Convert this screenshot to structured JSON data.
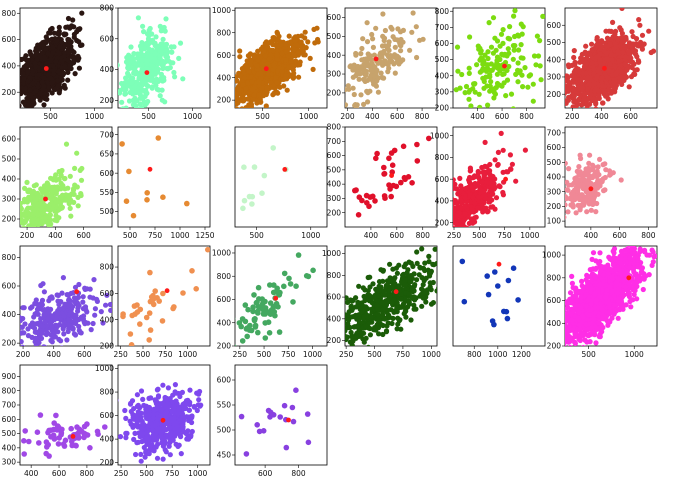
{
  "chart_data": [
    {
      "type": "scatter",
      "color": "#2a1612",
      "count": 900,
      "mean": [
        450,
        380
      ],
      "std": [
        150,
        120
      ],
      "rho": 0.55,
      "noise": [
        1,
        1
      ],
      "center": [
        450,
        380
      ],
      "xlim": [
        150,
        1200
      ],
      "ylim": [
        80,
        840
      ],
      "xticks": [
        500,
        1000
      ],
      "yticks": [
        200,
        400,
        600,
        800
      ]
    },
    {
      "type": "scatter",
      "color": "#7dffb8",
      "count": 350,
      "mean": [
        450,
        380
      ],
      "std": [
        150,
        120
      ],
      "rho": 0.5,
      "noise": [
        1,
        1
      ],
      "center": [
        480,
        380
      ],
      "xlim": [
        150,
        1200
      ],
      "ylim": [
        150,
        800
      ],
      "xticks": [
        500,
        1000
      ],
      "yticks": [
        200,
        400,
        600,
        800
      ]
    },
    {
      "type": "scatter",
      "color": "#c06b0a",
      "count": 900,
      "mean": [
        540,
        460
      ],
      "std": [
        180,
        140
      ],
      "rho": 0.6,
      "noise": [
        1,
        1
      ],
      "center": [
        540,
        480
      ],
      "xlim": [
        200,
        1200
      ],
      "ylim": [
        130,
        1020
      ],
      "xticks": [
        500,
        1000
      ],
      "yticks": [
        200,
        400,
        600,
        800,
        1000
      ]
    },
    {
      "type": "scatter",
      "color": "#c7a36c",
      "count": 180,
      "mean": [
        420,
        360
      ],
      "std": [
        160,
        100
      ],
      "rho": 0.6,
      "noise": [
        1,
        1
      ],
      "center": [
        430,
        380
      ],
      "xlim": [
        180,
        920
      ],
      "ylim": [
        120,
        650
      ],
      "xticks": [
        200,
        400,
        600,
        800
      ],
      "yticks": [
        200,
        300,
        400,
        500,
        600
      ]
    },
    {
      "type": "scatter",
      "color": "#7cdc10",
      "count": 160,
      "mean": [
        550,
        440
      ],
      "std": [
        180,
        140
      ],
      "rho": 0.1,
      "noise": [
        1,
        1
      ],
      "center": [
        620,
        460
      ],
      "xlim": [
        200,
        950
      ],
      "ylim": [
        200,
        820
      ],
      "xticks": [
        400,
        600,
        800
      ],
      "yticks": [
        200,
        300,
        400,
        500,
        600,
        700,
        800
      ]
    },
    {
      "type": "scatter",
      "color": "#d63a3a",
      "count": 1200,
      "mean": [
        400,
        340
      ],
      "std": [
        110,
        90
      ],
      "rho": 0.6,
      "noise": [
        1,
        1
      ],
      "center": [
        420,
        350
      ],
      "xlim": [
        150,
        780
      ],
      "ylim": [
        120,
        700
      ],
      "xticks": [
        200,
        400,
        600
      ],
      "yticks": [
        200,
        300,
        400,
        500,
        600
      ]
    },
    {
      "type": "scatter",
      "color": "#9bef6a",
      "count": 350,
      "mean": [
        300,
        260
      ],
      "std": [
        120,
        80
      ],
      "rho": 0.55,
      "noise": [
        1,
        1
      ],
      "center": [
        330,
        300
      ],
      "xlim": [
        150,
        800
      ],
      "ylim": [
        160,
        660
      ],
      "xticks": [
        200,
        400,
        600
      ],
      "yticks": [
        200,
        300,
        400,
        500,
        600
      ]
    },
    {
      "type": "scatter",
      "color": "#e68a32",
      "count": 12,
      "mean": [
        600,
        580
      ],
      "std": [
        250,
        80
      ],
      "rho": 0.4,
      "noise": [
        1,
        1
      ],
      "center": [
        700,
        610
      ],
      "xlim": [
        380,
        1300
      ],
      "ylim": [
        460,
        720
      ],
      "xticks": [
        500,
        750,
        1000,
        1250
      ],
      "yticks": [
        500,
        550,
        600,
        650,
        700
      ]
    },
    {
      "type": "scatter",
      "color": "#c3f5c8",
      "count": 12,
      "mean": [
        500,
        500
      ],
      "std": [
        150,
        150
      ],
      "rho": 0.5,
      "noise": [
        1,
        1
      ],
      "center": [
        760,
        600
      ],
      "xlim": [
        300,
        1150
      ],
      "ylim": [
        220,
        880
      ],
      "xticks": [
        500,
        1000
      ],
      "yticks": []
    },
    {
      "type": "scatter",
      "color": "#e0102a",
      "count": 40,
      "mean": [
        560,
        450
      ],
      "std": [
        170,
        150
      ],
      "rho": 0.7,
      "noise": [
        1,
        1
      ],
      "center": [
        560,
        460
      ],
      "xlim": [
        200,
        910
      ],
      "ylim": [
        100,
        800
      ],
      "xticks": [
        400,
        600,
        800
      ],
      "yticks": [
        200,
        300,
        400,
        500,
        600,
        700,
        800
      ]
    },
    {
      "type": "scatter",
      "color": "#e81e3c",
      "count": 400,
      "mean": [
        400,
        380
      ],
      "std": [
        160,
        180
      ],
      "rho": 0.7,
      "noise": [
        1,
        1
      ],
      "center": [
        760,
        600
      ],
      "xlim": [
        240,
        1150
      ],
      "ylim": [
        160,
        1080
      ],
      "xticks": [
        250,
        500,
        750,
        1000
      ],
      "yticks": [
        200,
        400,
        600,
        800,
        1000
      ]
    },
    {
      "type": "scatter",
      "color": "#f08896",
      "count": 180,
      "mean": [
        370,
        330
      ],
      "std": [
        80,
        90
      ],
      "rho": 0.4,
      "noise": [
        1,
        1
      ],
      "center": [
        400,
        320
      ],
      "xlim": [
        220,
        860
      ],
      "ylim": [
        60,
        740
      ],
      "xticks": [
        200,
        400,
        600,
        800
      ],
      "yticks": [
        100,
        200,
        300,
        400,
        500,
        600,
        700
      ]
    },
    {
      "type": "scatter",
      "color": "#7b4ee0",
      "count": 300,
      "mean": [
        420,
        360
      ],
      "std": [
        140,
        110
      ],
      "rho": 0.5,
      "noise": [
        1,
        1
      ],
      "center": [
        550,
        560
      ],
      "xlim": [
        180,
        780
      ],
      "ylim": [
        180,
        880
      ],
      "xticks": [
        200,
        400,
        600
      ],
      "yticks": [
        200,
        400,
        600,
        800
      ]
    },
    {
      "type": "scatter",
      "color": "#f09050",
      "count": 40,
      "mean": [
        480,
        450
      ],
      "std": [
        250,
        160
      ],
      "rho": 0.7,
      "noise": [
        1,
        1
      ],
      "center": [
        770,
        620
      ],
      "xlim": [
        220,
        1250
      ],
      "ylim": [
        200,
        960
      ],
      "xticks": [
        250,
        500,
        750,
        1000
      ],
      "yticks": [
        200,
        400,
        600,
        800
      ]
    },
    {
      "type": "scatter",
      "color": "#44a860",
      "count": 80,
      "mean": [
        500,
        500
      ],
      "std": [
        200,
        200
      ],
      "rho": 0.85,
      "noise": [
        1,
        1
      ],
      "center": [
        620,
        610
      ],
      "xlim": [
        200,
        1150
      ],
      "ylim": [
        200,
        1060
      ],
      "xticks": [
        250,
        500,
        750,
        1000
      ],
      "yticks": [
        200,
        400,
        600,
        800,
        1000
      ]
    },
    {
      "type": "scatter",
      "color": "#1b5c08",
      "count": 500,
      "mean": [
        550,
        520
      ],
      "std": [
        250,
        200
      ],
      "rho": 0.75,
      "noise": [
        1,
        1
      ],
      "center": [
        690,
        650
      ],
      "xlim": [
        240,
        1050
      ],
      "ylim": [
        150,
        1070
      ],
      "xticks": [
        250,
        500,
        750,
        1000
      ],
      "yticks": [
        200,
        400,
        600,
        800,
        1000
      ]
    },
    {
      "type": "scatter",
      "color": "#1236b8",
      "count": 16,
      "mean": [
        900,
        600
      ],
      "std": [
        200,
        200
      ],
      "rho": 0.2,
      "noise": [
        1,
        1
      ],
      "center": [
        1010,
        930
      ],
      "xlim": [
        620,
        1400
      ],
      "ylim": [
        300,
        1070
      ],
      "xticks": [
        800,
        1000,
        1200
      ],
      "yticks": []
    },
    {
      "type": "scatter",
      "color": "#ff2ee6",
      "count": 1400,
      "mean": [
        620,
        620
      ],
      "std": [
        220,
        200
      ],
      "rho": 0.75,
      "noise": [
        1,
        1
      ],
      "center": [
        940,
        800
      ],
      "xlim": [
        240,
        1250
      ],
      "ylim": [
        200,
        1080
      ],
      "xticks": [
        500,
        1000
      ],
      "yticks": [
        200,
        400,
        600,
        800,
        1000
      ]
    },
    {
      "type": "scatter",
      "color": "#a048e6",
      "count": 60,
      "mean": [
        650,
        480
      ],
      "std": [
        150,
        60
      ],
      "rho": 0.2,
      "noise": [
        1,
        1
      ],
      "center": [
        700,
        480
      ],
      "xlim": [
        320,
        980
      ],
      "ylim": [
        280,
        980
      ],
      "xticks": [
        400,
        600,
        800
      ],
      "yticks": [
        300,
        400,
        500,
        600,
        700,
        800,
        900
      ]
    },
    {
      "type": "scatter",
      "color": "#7e48ee",
      "count": 500,
      "mean": [
        650,
        560
      ],
      "std": [
        150,
        120
      ],
      "rho": 0.2,
      "noise": [
        1,
        1
      ],
      "center": [
        660,
        560
      ],
      "xlim": [
        220,
        1120
      ],
      "ylim": [
        180,
        1030
      ],
      "xticks": [
        250,
        500,
        750,
        1000
      ],
      "yticks": [
        200,
        400,
        600,
        800,
        1000
      ]
    },
    {
      "type": "scatter",
      "color": "#8840e0",
      "count": 20,
      "mean": [
        700,
        500
      ],
      "std": [
        120,
        60
      ],
      "rho": 0.1,
      "noise": [
        1,
        1
      ],
      "center": [
        740,
        520
      ],
      "xlim": [
        420,
        970
      ],
      "ylim": [
        430,
        630
      ],
      "xticks": [
        600,
        800
      ],
      "yticks": [
        450,
        500,
        550,
        600
      ]
    }
  ]
}
